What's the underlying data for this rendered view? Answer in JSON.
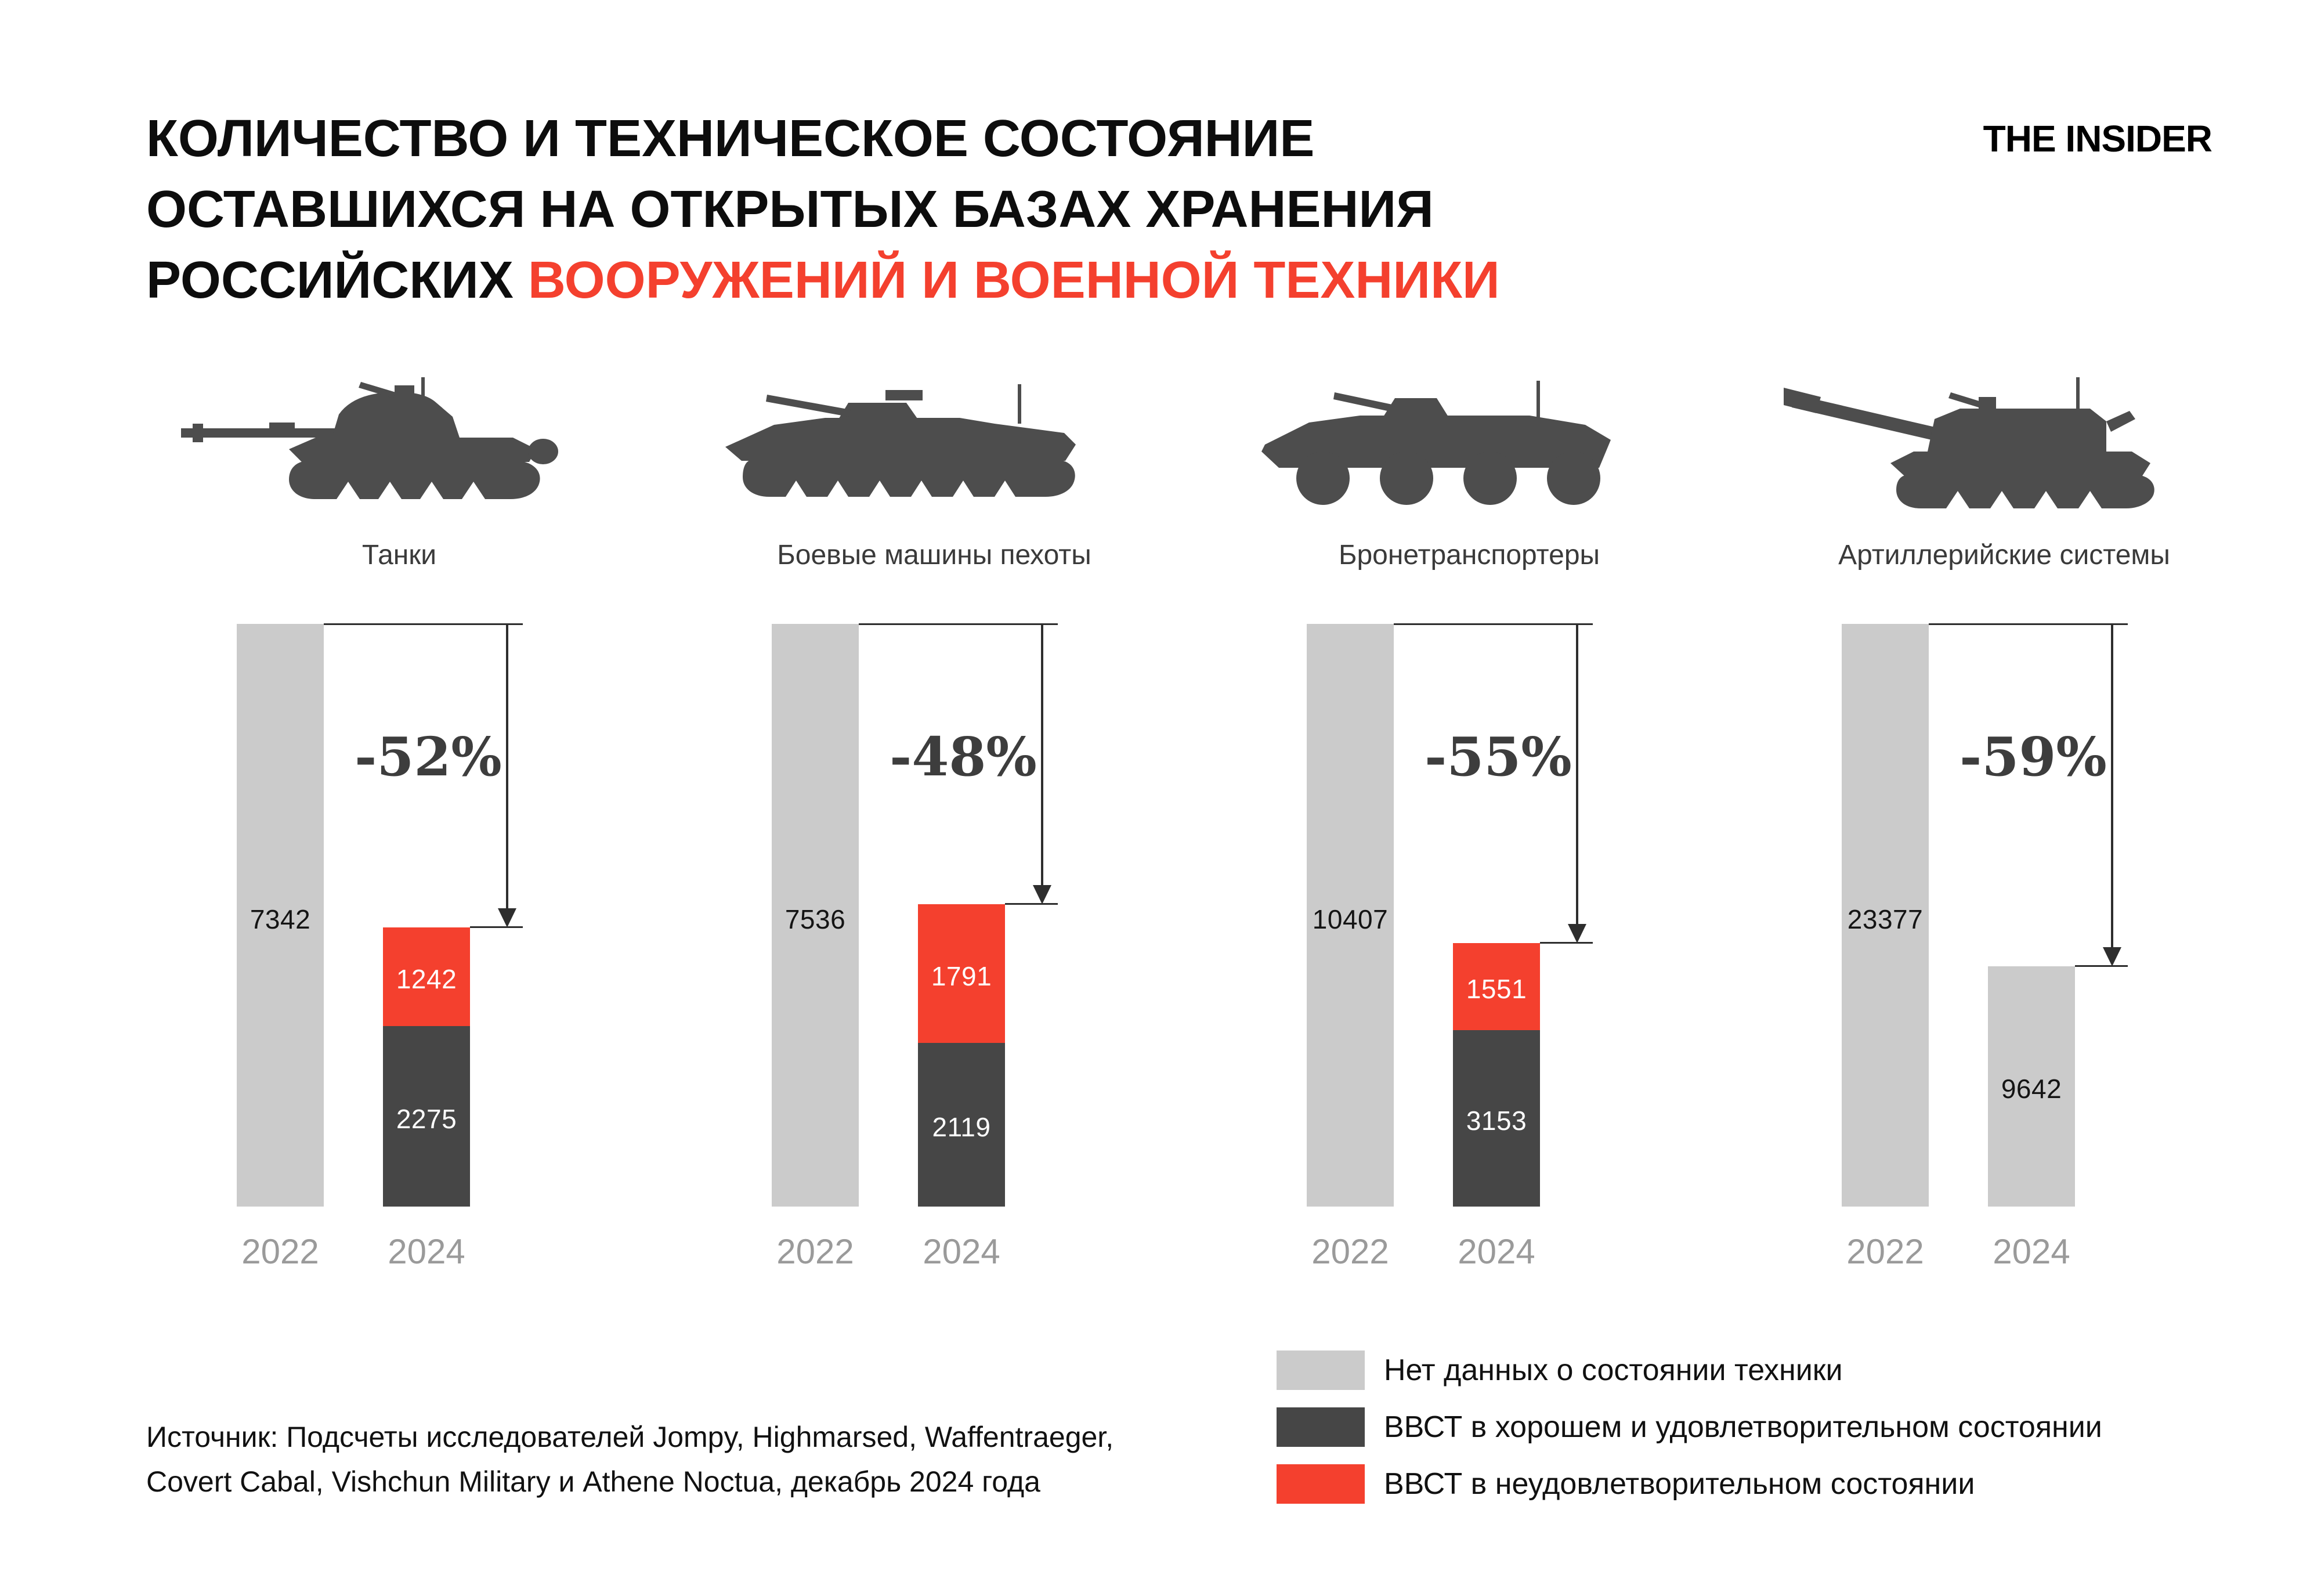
{
  "title": {
    "line1": "КОЛИЧЕСТВО И ТЕХНИЧЕСКОЕ СОСТОЯНИЕ",
    "line2": "ОСТАВШИХСЯ НА ОТКРЫТЫХ БАЗАХ ХРАНЕНИЯ",
    "line3_black": "РОССИЙСКИХ ",
    "line3_red": "ВООРУЖЕНИЙ И ВОЕННОЙ ТЕХНИКИ"
  },
  "logo": "THE INSIDER",
  "colors": {
    "accent_red": "#f4402e",
    "no_data_gray": "#cbcbcb",
    "good_dark": "#464646",
    "icon_gray": "#4d4d4d",
    "arrow": "#2e2e2e",
    "year_gray": "#9a9a9a"
  },
  "chart_data": {
    "type": "bar",
    "subtype": "grouped-stacked-comparison",
    "years": [
      "2022",
      "2024"
    ],
    "groups": [
      {
        "label": "Танки",
        "icon": "tank-icon",
        "total_2022": 7342,
        "bad_2024": 1242,
        "good_2024": 2275,
        "total_2024": 3517,
        "change": "-52%"
      },
      {
        "label": "Боевые машины пехоты",
        "icon": "ifv-icon",
        "total_2022": 7536,
        "bad_2024": 1791,
        "good_2024": 2119,
        "total_2024": 3910,
        "change": "-48%"
      },
      {
        "label": "Бронетранспортеры",
        "icon": "apc-icon",
        "total_2022": 10407,
        "bad_2024": 1551,
        "good_2024": 3153,
        "total_2024": 4704,
        "change": "-55%"
      },
      {
        "label": "Артиллерийские системы",
        "icon": "artillery-icon",
        "total_2022": 23377,
        "unknown_2024": 9642,
        "total_2024": 9642,
        "change": "-59%"
      }
    ],
    "legend_position": "bottom-right",
    "grid": false
  },
  "legend": [
    {
      "color": "#cbcbcb",
      "label": "Нет данных о состоянии техники"
    },
    {
      "color": "#464646",
      "label": "ВВСТ в хорошем и удовлетворительном состоянии"
    },
    {
      "color": "#f4402e",
      "label": "ВВСТ в неудовлетворительном состоянии"
    }
  ],
  "source": {
    "line1": "Источник: Подсчеты исследователей Jompy, Highmarsed, Waffentraeger,",
    "line2": "Covert Cabal, Vishchun Military и Athene Noctua, декабрь 2024 года"
  }
}
